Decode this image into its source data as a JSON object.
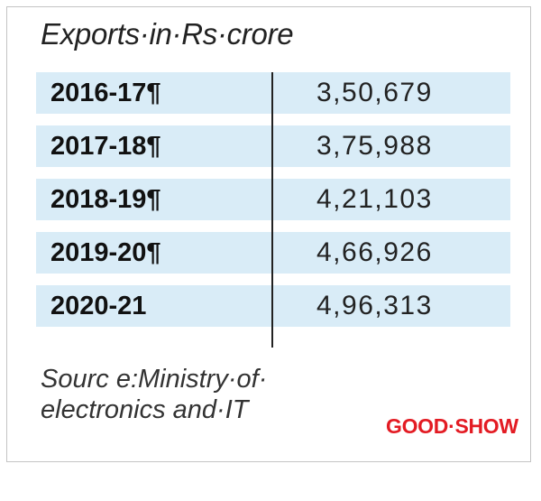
{
  "title": "Exports·in·Rs·crore",
  "colors": {
    "row_background": "#d9ecf7",
    "brand": "#e31b23",
    "divider": "#222222"
  },
  "rows": [
    {
      "year": "2016-17¶",
      "value": "3,50,679"
    },
    {
      "year": "2017-18¶",
      "value": "3,75,988"
    },
    {
      "year": "2018-19¶",
      "value": "4,21,103"
    },
    {
      "year": "2019-20¶",
      "value": "4,66,926"
    },
    {
      "year": "2020-21",
      "value": "4,96,313"
    }
  ],
  "source": {
    "line1": "Sourc e:Ministry·of·",
    "line2": "electronics and·IT"
  },
  "brand_label": "GOOD·SHOW"
}
